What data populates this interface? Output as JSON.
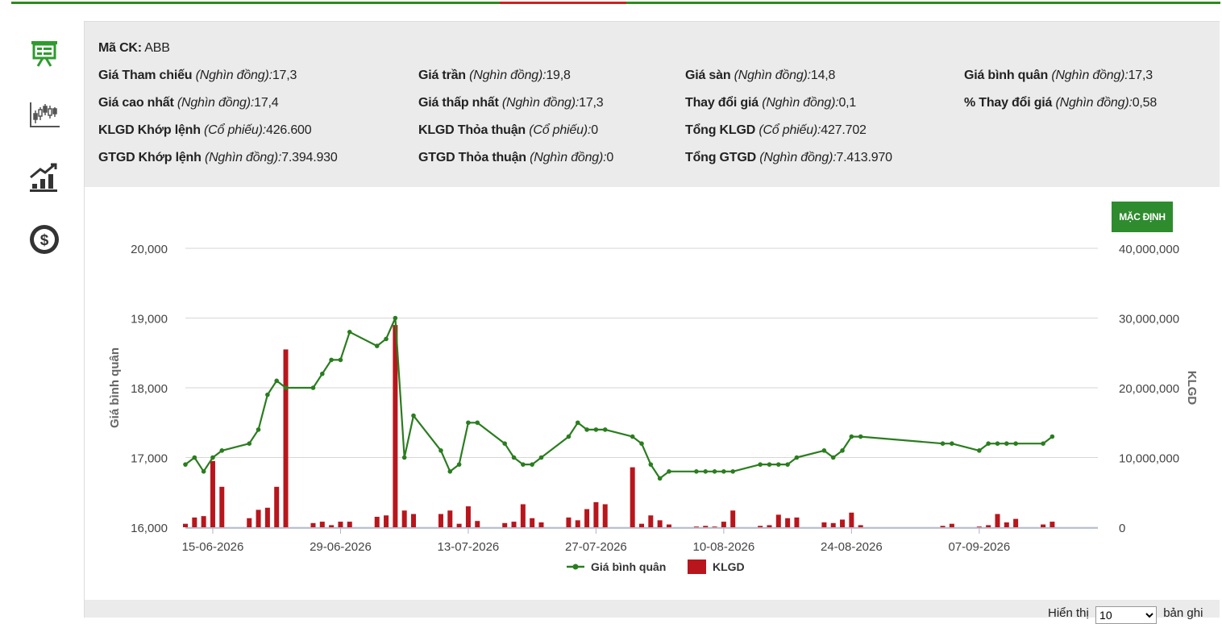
{
  "stock": {
    "label": "Mã CK:",
    "value": "ABB"
  },
  "info_rows": [
    [
      {
        "label": "Giá Tham chiếu",
        "unit": "(Nghìn đồng):",
        "value": "17,3"
      },
      {
        "label": "Giá trần",
        "unit": "(Nghìn đồng):",
        "value": "19,8"
      },
      {
        "label": "Giá sàn",
        "unit": "(Nghìn đồng):",
        "value": "14,8"
      },
      {
        "label": "Giá bình quân",
        "unit": "(Nghìn đồng):",
        "value": "17,3"
      }
    ],
    [
      {
        "label": "Giá cao nhất",
        "unit": "(Nghìn đồng):",
        "value": "17,4"
      },
      {
        "label": "Giá thấp nhất",
        "unit": "(Nghìn đồng):",
        "value": "17,3"
      },
      {
        "label": "Thay đổi giá",
        "unit": "(Nghìn đồng):",
        "value": "0,1"
      },
      {
        "label": "% Thay đổi giá",
        "unit": "(Nghìn đồng):",
        "value": "0,58"
      }
    ],
    [
      {
        "label": "KLGD Khớp lệnh",
        "unit": "(Cổ phiếu):",
        "value": "426.600"
      },
      {
        "label": "KLGD Thỏa thuận",
        "unit": "(Cổ phiếu):",
        "value": "0"
      },
      {
        "label": "Tổng KLGD",
        "unit": "(Cổ phiếu):",
        "value": "427.702"
      }
    ],
    [
      {
        "label": "GTGD Khớp lệnh",
        "unit": "(Nghìn đồng):",
        "value": "7.394.930"
      },
      {
        "label": "GTGD Thỏa thuận",
        "unit": "(Nghìn đồng):",
        "value": "0"
      },
      {
        "label": "Tổng GTGD",
        "unit": "(Nghìn đồng):",
        "value": "7.413.970"
      }
    ]
  ],
  "sidebar": [
    {
      "name": "presentation-board-icon",
      "color": "#2e9b2e"
    },
    {
      "name": "candlestick-chart-icon",
      "color": "#555555"
    },
    {
      "name": "bar-growth-chart-icon",
      "color": "#333333"
    },
    {
      "name": "dollar-circle-icon",
      "color": "#333333"
    }
  ],
  "default_button": "MẶC ĐỊNH",
  "pagination": {
    "prefix": "Hiển thị",
    "value": "10",
    "suffix": "bản ghi"
  },
  "colors": {
    "line": "#2a7d1f",
    "bar": "#b8161c",
    "accent": "#2e8b2e",
    "red": "#d0201c"
  },
  "chart_data": {
    "type": "line+bar",
    "x_ticks": [
      "15-06-2026",
      "29-06-2026",
      "13-07-2026",
      "27-07-2026",
      "10-08-2026",
      "24-08-2026",
      "07-09-2026"
    ],
    "x_start": "2026-06-12",
    "x_end": "2026-09-20",
    "y_left": {
      "label": "Giá bình quân",
      "range": [
        16000,
        20000
      ],
      "ticks": [
        16000,
        17000,
        18000,
        19000,
        20000
      ],
      "tick_labels": [
        "16,000",
        "17,000",
        "18,000",
        "19,000",
        "20,000"
      ]
    },
    "y_right": {
      "label": "KLGD",
      "range": [
        0,
        40000000
      ],
      "ticks": [
        0,
        10000000,
        20000000,
        30000000,
        40000000
      ],
      "tick_labels": [
        "0",
        "10,000,000",
        "20,000,000",
        "30,000,000",
        "40,000,000"
      ]
    },
    "legend": [
      "Giá bình quân",
      "KLGD"
    ],
    "legend_position": "bottom",
    "price_series": [
      [
        "2026-06-12",
        16900
      ],
      [
        "2026-06-13",
        17000
      ],
      [
        "2026-06-14",
        16800
      ],
      [
        "2026-06-15",
        17000
      ],
      [
        "2026-06-16",
        17100
      ],
      [
        "2026-06-19",
        17200
      ],
      [
        "2026-06-20",
        17400
      ],
      [
        "2026-06-21",
        17900
      ],
      [
        "2026-06-22",
        18100
      ],
      [
        "2026-06-23",
        18000
      ],
      [
        "2026-06-26",
        18000
      ],
      [
        "2026-06-27",
        18200
      ],
      [
        "2026-06-28",
        18400
      ],
      [
        "2026-06-29",
        18400
      ],
      [
        "2026-06-30",
        18800
      ],
      [
        "2026-07-03",
        18600
      ],
      [
        "2026-07-04",
        18700
      ],
      [
        "2026-07-05",
        19000
      ],
      [
        "2026-07-06",
        17000
      ],
      [
        "2026-07-07",
        17600
      ],
      [
        "2026-07-10",
        17100
      ],
      [
        "2026-07-11",
        16800
      ],
      [
        "2026-07-12",
        16900
      ],
      [
        "2026-07-13",
        17500
      ],
      [
        "2026-07-14",
        17500
      ],
      [
        "2026-07-17",
        17200
      ],
      [
        "2026-07-18",
        17000
      ],
      [
        "2026-07-19",
        16900
      ],
      [
        "2026-07-20",
        16900
      ],
      [
        "2026-07-21",
        17000
      ],
      [
        "2026-07-24",
        17300
      ],
      [
        "2026-07-25",
        17500
      ],
      [
        "2026-07-26",
        17400
      ],
      [
        "2026-07-27",
        17400
      ],
      [
        "2026-07-28",
        17400
      ],
      [
        "2026-07-31",
        17300
      ],
      [
        "2026-08-01",
        17200
      ],
      [
        "2026-08-02",
        16900
      ],
      [
        "2026-08-03",
        16700
      ],
      [
        "2026-08-04",
        16800
      ],
      [
        "2026-08-07",
        16800
      ],
      [
        "2026-08-08",
        16800
      ],
      [
        "2026-08-09",
        16800
      ],
      [
        "2026-08-10",
        16800
      ],
      [
        "2026-08-11",
        16800
      ],
      [
        "2026-08-14",
        16900
      ],
      [
        "2026-08-15",
        16900
      ],
      [
        "2026-08-16",
        16900
      ],
      [
        "2026-08-17",
        16900
      ],
      [
        "2026-08-18",
        17000
      ],
      [
        "2026-08-21",
        17100
      ],
      [
        "2026-08-22",
        17000
      ],
      [
        "2026-08-23",
        17100
      ],
      [
        "2026-08-24",
        17300
      ],
      [
        "2026-08-25",
        17300
      ],
      [
        "2026-09-03",
        17200
      ],
      [
        "2026-09-04",
        17200
      ],
      [
        "2026-09-07",
        17100
      ],
      [
        "2026-09-08",
        17200
      ],
      [
        "2026-09-09",
        17200
      ],
      [
        "2026-09-10",
        17200
      ],
      [
        "2026-09-11",
        17200
      ],
      [
        "2026-09-14",
        17200
      ],
      [
        "2026-09-15",
        17300
      ]
    ],
    "volume_series": [
      [
        "2026-06-12",
        500000
      ],
      [
        "2026-06-13",
        1400000
      ],
      [
        "2026-06-14",
        1600000
      ],
      [
        "2026-06-15",
        9500000
      ],
      [
        "2026-06-16",
        5800000
      ],
      [
        "2026-06-19",
        1300000
      ],
      [
        "2026-06-20",
        2500000
      ],
      [
        "2026-06-21",
        2800000
      ],
      [
        "2026-06-22",
        5800000
      ],
      [
        "2026-06-23",
        25500000
      ],
      [
        "2026-06-26",
        600000
      ],
      [
        "2026-06-27",
        800000
      ],
      [
        "2026-06-28",
        300000
      ],
      [
        "2026-06-29",
        800000
      ],
      [
        "2026-06-30",
        800000
      ],
      [
        "2026-07-03",
        1500000
      ],
      [
        "2026-07-04",
        1700000
      ],
      [
        "2026-07-05",
        29000000
      ],
      [
        "2026-07-06",
        2400000
      ],
      [
        "2026-07-07",
        1900000
      ],
      [
        "2026-07-10",
        1900000
      ],
      [
        "2026-07-11",
        2400000
      ],
      [
        "2026-07-12",
        500000
      ],
      [
        "2026-07-13",
        3000000
      ],
      [
        "2026-07-14",
        900000
      ],
      [
        "2026-07-17",
        600000
      ],
      [
        "2026-07-18",
        800000
      ],
      [
        "2026-07-19",
        3300000
      ],
      [
        "2026-07-20",
        1300000
      ],
      [
        "2026-07-21",
        700000
      ],
      [
        "2026-07-24",
        1400000
      ],
      [
        "2026-07-25",
        1000000
      ],
      [
        "2026-07-26",
        2600000
      ],
      [
        "2026-07-27",
        3600000
      ],
      [
        "2026-07-28",
        3300000
      ],
      [
        "2026-07-31",
        8600000
      ],
      [
        "2026-08-01",
        500000
      ],
      [
        "2026-08-02",
        1700000
      ],
      [
        "2026-08-03",
        1000000
      ],
      [
        "2026-08-04",
        400000
      ],
      [
        "2026-08-07",
        100000
      ],
      [
        "2026-08-08",
        200000
      ],
      [
        "2026-08-09",
        100000
      ],
      [
        "2026-08-10",
        800000
      ],
      [
        "2026-08-11",
        2400000
      ],
      [
        "2026-08-14",
        200000
      ],
      [
        "2026-08-15",
        300000
      ],
      [
        "2026-08-16",
        1800000
      ],
      [
        "2026-08-17",
        1300000
      ],
      [
        "2026-08-18",
        1400000
      ],
      [
        "2026-08-21",
        700000
      ],
      [
        "2026-08-22",
        600000
      ],
      [
        "2026-08-23",
        1100000
      ],
      [
        "2026-08-24",
        2100000
      ],
      [
        "2026-08-25",
        300000
      ],
      [
        "2026-09-03",
        200000
      ],
      [
        "2026-09-04",
        500000
      ],
      [
        "2026-09-07",
        100000
      ],
      [
        "2026-09-08",
        300000
      ],
      [
        "2026-09-09",
        1900000
      ],
      [
        "2026-09-10",
        700000
      ],
      [
        "2026-09-11",
        1200000
      ],
      [
        "2026-09-14",
        400000
      ],
      [
        "2026-09-15",
        800000
      ]
    ]
  }
}
